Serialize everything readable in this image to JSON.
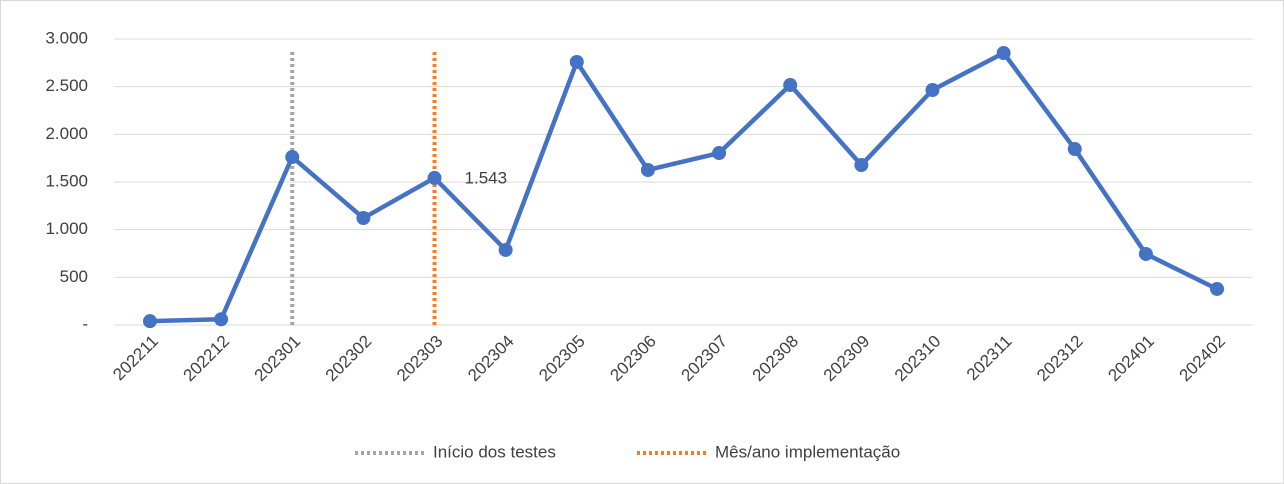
{
  "chart_data": {
    "type": "line",
    "categories": [
      "202211",
      "202212",
      "202301",
      "202302",
      "202303",
      "202304",
      "202305",
      "202306",
      "202307",
      "202308",
      "202309",
      "202310",
      "202311",
      "202312",
      "202401",
      "202402"
    ],
    "series": [
      {
        "color": "#4472c4",
        "values": [
          40,
          60,
          1762,
          1122,
          1543,
          787,
          2759,
          1626,
          1804,
          2517,
          1678,
          2465,
          2853,
          1846,
          745,
          378
        ],
        "data_labels": [
          {
            "index": 4,
            "label": "1.543"
          }
        ]
      }
    ],
    "reference_lines": [
      {
        "name": "Início dos testes",
        "color": "#a5a5a5",
        "category": "202301"
      },
      {
        "name": "Mês/ano implementação",
        "color": "#ed7d31",
        "category": "202303"
      }
    ],
    "ylim": [
      0,
      3000
    ],
    "yticks": [
      {
        "value": 0,
        "label": "-"
      },
      500,
      {
        "value": 1000,
        "label": "1.000"
      },
      {
        "value": 1500,
        "label": "1.500"
      },
      {
        "value": 2000,
        "label": "2.000"
      },
      {
        "value": 2500,
        "label": "2.500"
      },
      {
        "value": 3000,
        "label": "3.000"
      }
    ],
    "grid": true,
    "legend": "bottom"
  }
}
